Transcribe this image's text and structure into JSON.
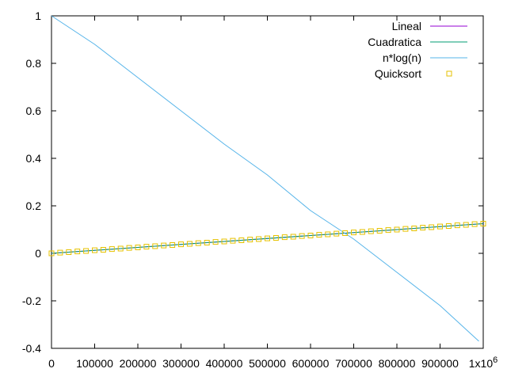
{
  "chart_data": {
    "type": "line",
    "title": "",
    "xlabel": "",
    "ylabel": "",
    "xlim": [
      0,
      1000000
    ],
    "ylim": [
      -0.4,
      1
    ],
    "x_ticks": [
      {
        "value": 0,
        "label": "0"
      },
      {
        "value": 100000,
        "label": "100000"
      },
      {
        "value": 200000,
        "label": "200000"
      },
      {
        "value": 300000,
        "label": "300000"
      },
      {
        "value": 400000,
        "label": "400000"
      },
      {
        "value": 500000,
        "label": "500000"
      },
      {
        "value": 600000,
        "label": "600000"
      },
      {
        "value": 700000,
        "label": "700000"
      },
      {
        "value": 800000,
        "label": "800000"
      },
      {
        "value": 900000,
        "label": "900000"
      },
      {
        "value": 1000000,
        "label": "1x10",
        "sup": "6"
      }
    ],
    "y_ticks": [
      {
        "value": -0.4,
        "label": "-0.4"
      },
      {
        "value": -0.2,
        "label": "-0.2"
      },
      {
        "value": 0,
        "label": "0"
      },
      {
        "value": 0.2,
        "label": "0.2"
      },
      {
        "value": 0.4,
        "label": "0.4"
      },
      {
        "value": 0.6,
        "label": "0.6"
      },
      {
        "value": 0.8,
        "label": "0.8"
      },
      {
        "value": 1,
        "label": "1"
      }
    ],
    "grid": false,
    "legend_position": "top-right",
    "series": [
      {
        "name": "Lineal",
        "kind": "line",
        "color": "#9400d3",
        "x": [
          0,
          1000000
        ],
        "y": [
          0,
          0.125
        ]
      },
      {
        "name": "Cuadratica",
        "kind": "line",
        "color": "#009e73",
        "x": [
          0,
          1000000
        ],
        "y": [
          0,
          0.125
        ]
      },
      {
        "name": "n*log(n)",
        "kind": "line",
        "color": "#56b4e9",
        "x": [
          0,
          100000,
          200000,
          300000,
          400000,
          500000,
          600000,
          700000,
          800000,
          900000,
          990000
        ],
        "y": [
          1,
          0.88,
          0.74,
          0.6,
          0.46,
          0.33,
          0.18,
          0.06,
          -0.08,
          -0.22,
          -0.37
        ]
      },
      {
        "name": "Quicksort",
        "kind": "points",
        "color": "#e6c200",
        "x": [
          0,
          20000,
          40000,
          60000,
          80000,
          100000,
          120000,
          140000,
          160000,
          180000,
          200000,
          220000,
          240000,
          260000,
          280000,
          300000,
          320000,
          340000,
          360000,
          380000,
          400000,
          420000,
          440000,
          460000,
          480000,
          500000,
          520000,
          540000,
          560000,
          580000,
          600000,
          620000,
          640000,
          660000,
          680000,
          700000,
          720000,
          740000,
          760000,
          780000,
          800000,
          820000,
          840000,
          860000,
          880000,
          900000,
          920000,
          940000,
          960000,
          980000,
          1000000
        ],
        "y": [
          0,
          0.003,
          0.005,
          0.008,
          0.01,
          0.013,
          0.015,
          0.018,
          0.02,
          0.023,
          0.025,
          0.028,
          0.03,
          0.033,
          0.035,
          0.038,
          0.04,
          0.043,
          0.045,
          0.048,
          0.05,
          0.053,
          0.055,
          0.058,
          0.06,
          0.063,
          0.065,
          0.068,
          0.07,
          0.073,
          0.075,
          0.078,
          0.08,
          0.083,
          0.085,
          0.088,
          0.09,
          0.093,
          0.095,
          0.098,
          0.1,
          0.103,
          0.105,
          0.108,
          0.11,
          0.113,
          0.115,
          0.118,
          0.12,
          0.123,
          0.125
        ]
      }
    ]
  }
}
